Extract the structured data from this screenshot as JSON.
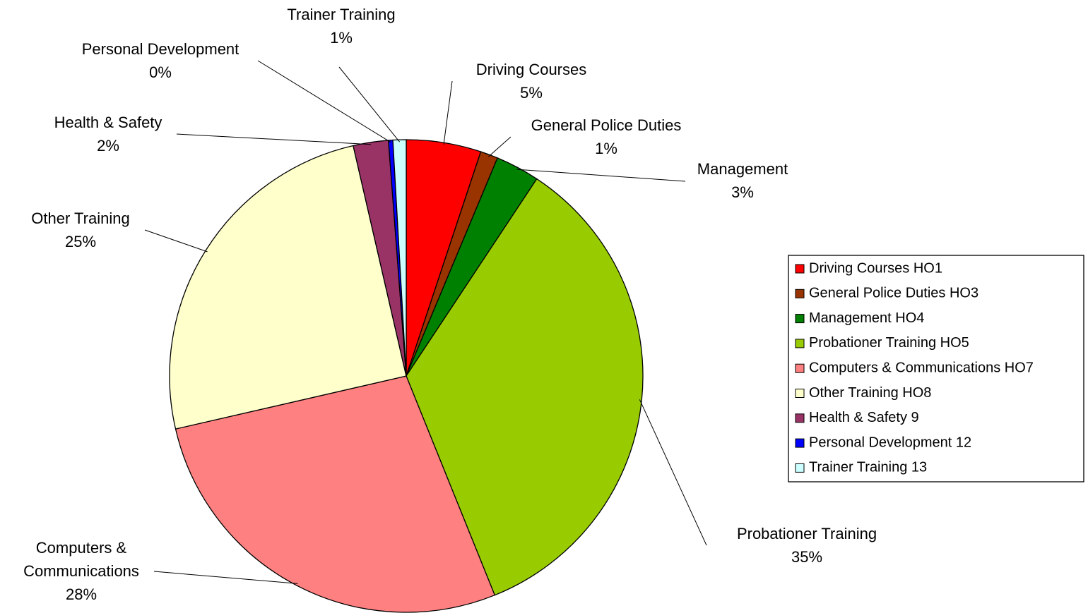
{
  "chart_data": {
    "type": "pie",
    "categories": [
      "Driving Courses",
      "General Police Duties",
      "Management",
      "Probationer Training",
      "Computers & Communications",
      "Other Training",
      "Health & Safety",
      "Personal Development",
      "Trainer Training"
    ],
    "values": [
      5.1,
      1.2,
      3.0,
      34.6,
      27.5,
      25.0,
      2.4,
      0.3,
      0.9
    ],
    "value_labels": [
      "5%",
      "1%",
      "3%",
      "35%",
      "28%",
      "25%",
      "2%",
      "0%",
      "1%"
    ],
    "colors": [
      "#ff0000",
      "#993300",
      "#008000",
      "#99cc00",
      "#ff8080",
      "#ffffcc",
      "#993366",
      "#0000ff",
      "#ccffff"
    ],
    "legend_labels": [
      "Driving Courses HO1",
      "General Police Duties HO3",
      "Management HO4",
      "Probationer Training HO5",
      "Computers & Communications HO7",
      "Other Training HO8",
      "Health & Safety 9",
      "Personal Development 12",
      "Trainer Training 13"
    ],
    "legend": "right"
  }
}
